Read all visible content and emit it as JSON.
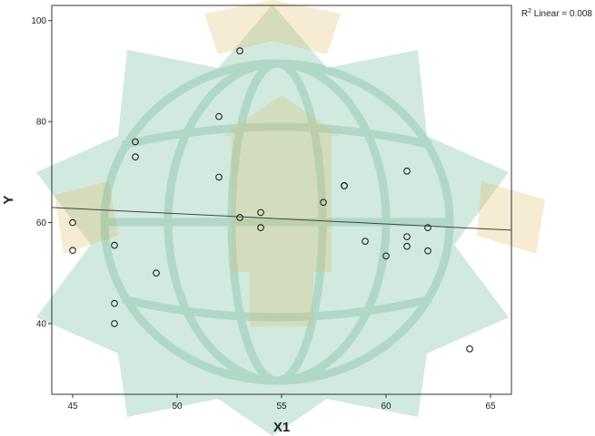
{
  "watermark": {
    "colors": {
      "green": "#2f9a6a",
      "gold": "#e0b860"
    }
  },
  "chart_data": {
    "type": "scatter",
    "title": "",
    "xlabel": "X1",
    "ylabel": "Y",
    "xlim": [
      44,
      66
    ],
    "ylim": [
      26,
      103
    ],
    "xticks": [
      45,
      50,
      55,
      60,
      65
    ],
    "yticks": [
      40,
      60,
      80,
      100
    ],
    "grid": false,
    "points": [
      {
        "x": 45,
        "y": 60
      },
      {
        "x": 45,
        "y": 54.5
      },
      {
        "x": 47,
        "y": 55.5
      },
      {
        "x": 47,
        "y": 44
      },
      {
        "x": 47,
        "y": 40
      },
      {
        "x": 48,
        "y": 76
      },
      {
        "x": 48,
        "y": 73
      },
      {
        "x": 49,
        "y": 50
      },
      {
        "x": 52,
        "y": 81
      },
      {
        "x": 52,
        "y": 69
      },
      {
        "x": 53,
        "y": 94
      },
      {
        "x": 53,
        "y": 61
      },
      {
        "x": 54,
        "y": 62
      },
      {
        "x": 54,
        "y": 59
      },
      {
        "x": 57,
        "y": 64
      },
      {
        "x": 58,
        "y": 67.3
      },
      {
        "x": 58,
        "y": 67.3
      },
      {
        "x": 59,
        "y": 56.3
      },
      {
        "x": 60,
        "y": 53.4
      },
      {
        "x": 61,
        "y": 70.2
      },
      {
        "x": 61,
        "y": 57.2
      },
      {
        "x": 61,
        "y": 55.3
      },
      {
        "x": 62,
        "y": 59
      },
      {
        "x": 62,
        "y": 54.4
      },
      {
        "x": 64,
        "y": 35
      }
    ],
    "fit_line": {
      "label_prefix": "R",
      "label_sup": "2",
      "label_suffix": " Linear = 0.008",
      "start": {
        "x": 44,
        "y": 63
      },
      "end": {
        "x": 66,
        "y": 58.5
      }
    },
    "colors": {
      "axis": "#333333",
      "marker": "#222222",
      "fit": "#444444"
    }
  }
}
